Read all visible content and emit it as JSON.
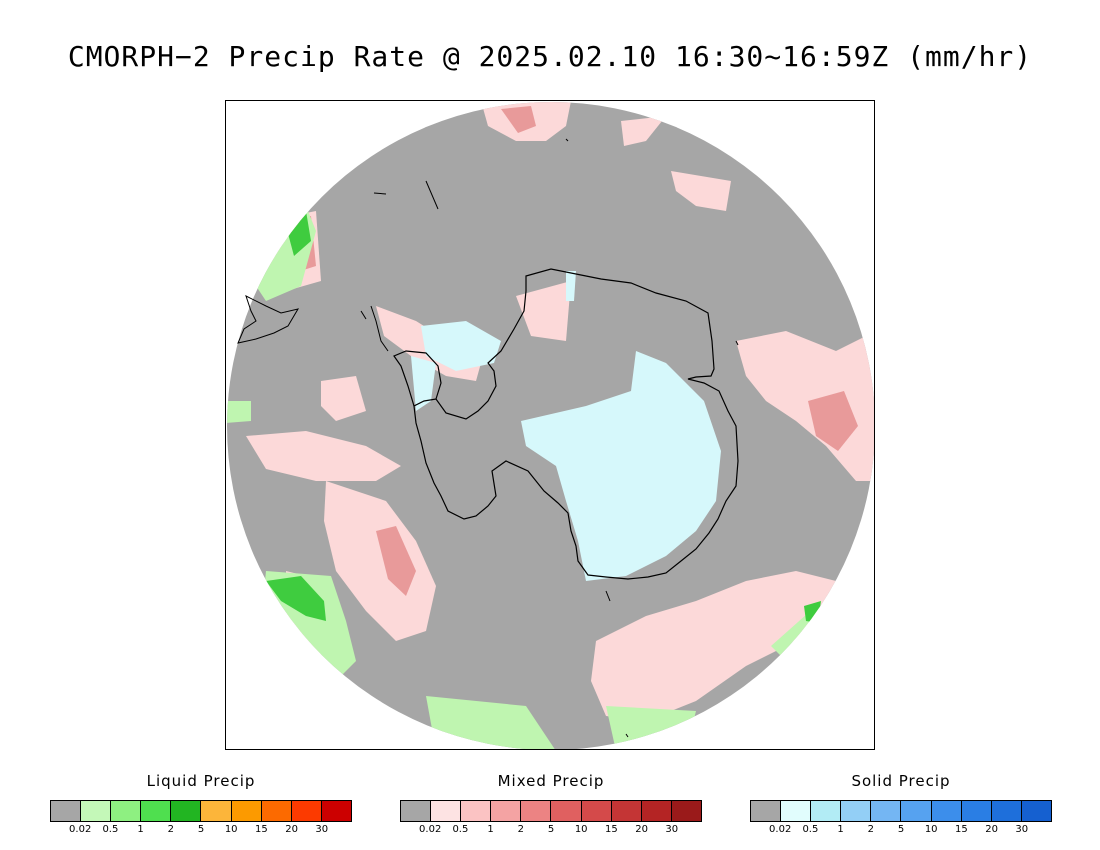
{
  "title": "CMORPH−2 Precip Rate @ 2025.02.10 16:30~16:59Z (mm/hr)",
  "colors": {
    "background": "#ffffff",
    "no_precip": "#a6a6a6",
    "coastline": "#000000",
    "snow_region": "#d6f8fb",
    "mixed_region": "#fcd9d9",
    "mixed_core": "#e89a9a",
    "liquid_region": "#bff5b0",
    "liquid_core": "#3fcc3f"
  },
  "legends": [
    {
      "id": "liquid",
      "title": "Liquid Precip",
      "colors": [
        "#a6a6a6",
        "#c4f8b8",
        "#8ef081",
        "#4fdf4f",
        "#22b522",
        "#fcb53a",
        "#fc9a00",
        "#fc6a00",
        "#fc3a00",
        "#cc0000"
      ],
      "labels": [
        "0.02",
        "0.5",
        "1",
        "2",
        "5",
        "10",
        "15",
        "20",
        "30"
      ]
    },
    {
      "id": "mixed",
      "title": "Mixed Precip",
      "colors": [
        "#a6a6a6",
        "#fde3e3",
        "#fbc3c3",
        "#f4a3a3",
        "#ec8383",
        "#e06060",
        "#d44a4a",
        "#c43535",
        "#b42424",
        "#9a1a1a"
      ],
      "labels": [
        "0.02",
        "0.5",
        "1",
        "2",
        "5",
        "10",
        "15",
        "20",
        "30"
      ]
    },
    {
      "id": "solid",
      "title": "Solid Precip",
      "colors": [
        "#a6a6a6",
        "#e1fdfd",
        "#b2ecf5",
        "#93cff6",
        "#74b6f3",
        "#56a2f0",
        "#3c8eeb",
        "#2a7ee4",
        "#1e6fdb",
        "#1560d0"
      ],
      "labels": [
        "0.02",
        "0.5",
        "1",
        "2",
        "5",
        "10",
        "15",
        "20",
        "30"
      ]
    }
  ]
}
